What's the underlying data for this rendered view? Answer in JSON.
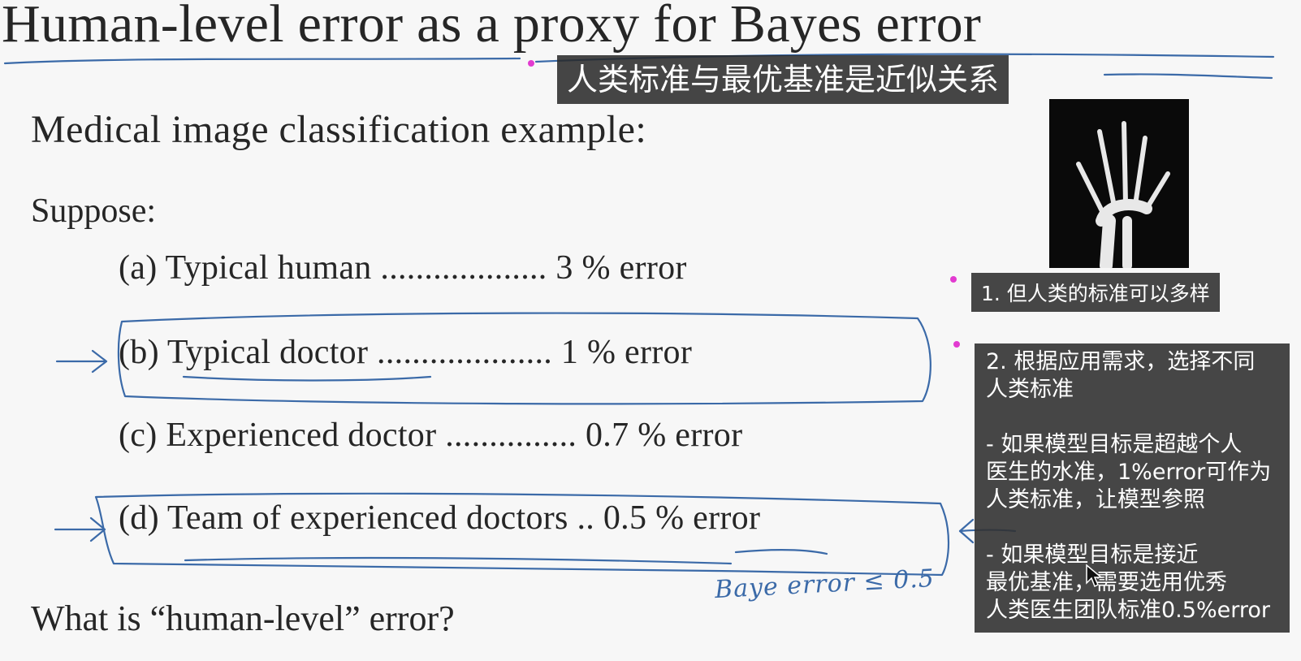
{
  "slide": {
    "title": "Human-level error as a proxy for Bayes error",
    "subtitle": "Medical image classification example:",
    "suppose": "Suppose:",
    "items": [
      {
        "label": "(a) Typical human ................... 3 % error"
      },
      {
        "label": "(b) Typical doctor .................... 1 % error"
      },
      {
        "label": "(c) Experienced doctor ............... 0.7 % error"
      },
      {
        "label": "(d) Team of experienced doctors .. 0.5 % error"
      }
    ],
    "question": "What is “human-level” error?"
  },
  "handwriting": {
    "bayes_note": "Baye error ≤ 0.5"
  },
  "image": {
    "icon": "hand-xray-image"
  },
  "notes": {
    "title_note": "人类标准与最优基准是近似关系",
    "note1": "1. 但人类的标准可以多样",
    "note2": "2. 根据应用需求，选择不同\n人类标准\n\n- 如果模型目标是超越个人\n医生的水准，1%error可作为\n人类标准，让模型参照\n\n- 如果模型目标是接近\n最优基准，需要选用优秀\n人类医生团队标准0.5%error"
  },
  "colors": {
    "ink": "#3b6aa8",
    "note_bg": "#323232",
    "marker": "#e23bd0"
  }
}
